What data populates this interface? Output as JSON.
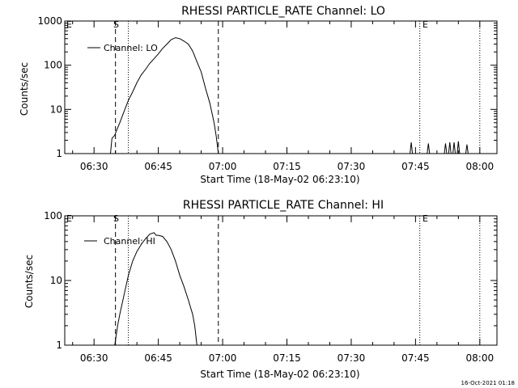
{
  "chart_data": [
    {
      "type": "line",
      "title": "RHESSI PARTICLE_RATE Channel: LO",
      "xlabel": "Start Time (18-May-02 06:23:10)",
      "ylabel": "Counts/sec",
      "yscale": "log",
      "ylim": [
        1,
        1000
      ],
      "xlim": [
        "06:23:10",
        "08:04:00"
      ],
      "x_ticks": [
        "06:30",
        "06:45",
        "07:00",
        "07:15",
        "07:30",
        "07:45",
        "08:00"
      ],
      "y_ticks": [
        "1",
        "10",
        "100",
        "1000"
      ],
      "legend": "Channel: LO",
      "legend_position": "top-left",
      "markers": {
        "E": "E",
        "S": "S",
        "E2": "E"
      },
      "grid": false,
      "series": [
        {
          "name": "Channel: LO",
          "points": [
            [
              "06:33:50",
              1.0
            ],
            [
              "06:34:10",
              2.2
            ],
            [
              "06:34:50",
              2.6
            ],
            [
              "06:35:10",
              3.2
            ],
            [
              "06:36:00",
              5.0
            ],
            [
              "06:37:00",
              9.0
            ],
            [
              "06:38:00",
              16
            ],
            [
              "06:39:00",
              25
            ],
            [
              "06:40:00",
              40
            ],
            [
              "06:41:00",
              60
            ],
            [
              "06:42:00",
              80
            ],
            [
              "06:43:00",
              110
            ],
            [
              "06:44:00",
              140
            ],
            [
              "06:45:00",
              180
            ],
            [
              "06:46:00",
              240
            ],
            [
              "06:47:00",
              300
            ],
            [
              "06:48:00",
              380
            ],
            [
              "06:49:00",
              420
            ],
            [
              "06:50:00",
              400
            ],
            [
              "06:51:00",
              350
            ],
            [
              "06:52:00",
              300
            ],
            [
              "06:53:00",
              210
            ],
            [
              "06:54:00",
              120
            ],
            [
              "06:55:00",
              70
            ],
            [
              "06:56:00",
              30
            ],
            [
              "06:57:00",
              14
            ],
            [
              "06:58:00",
              5
            ],
            [
              "06:58:30",
              2.5
            ],
            [
              "06:59:00",
              1.0
            ]
          ],
          "spikes": [
            [
              "07:44:00",
              1.8
            ],
            [
              "07:48:00",
              1.7
            ],
            [
              "07:52:00",
              1.7
            ],
            [
              "07:53:00",
              1.8
            ],
            [
              "07:54:00",
              1.8
            ],
            [
              "07:55:00",
              1.9
            ],
            [
              "07:57:00",
              1.6
            ]
          ]
        }
      ],
      "vlines": [
        {
          "time": "06:35:00",
          "style": "dashed"
        },
        {
          "time": "06:38:00",
          "style": "dotted"
        },
        {
          "time": "06:59:00",
          "style": "dashed"
        },
        {
          "time": "07:46:00",
          "style": "dotted"
        },
        {
          "time": "08:00:00",
          "style": "dotted"
        }
      ]
    },
    {
      "type": "line",
      "title": "RHESSI PARTICLE_RATE Channel: HI",
      "xlabel": "Start Time (18-May-02 06:23:10)",
      "ylabel": "Counts/sec",
      "yscale": "log",
      "ylim": [
        1,
        100
      ],
      "xlim": [
        "06:23:10",
        "08:04:00"
      ],
      "x_ticks": [
        "06:30",
        "06:45",
        "07:00",
        "07:15",
        "07:30",
        "07:45",
        "08:00"
      ],
      "y_ticks": [
        "1",
        "10",
        "100"
      ],
      "legend": "Channel: HI",
      "legend_position": "top-left",
      "markers": {
        "E": "E",
        "S": "S",
        "E2": "E"
      },
      "grid": false,
      "series": [
        {
          "name": "Channel: HI",
          "points": [
            [
              "06:34:50",
              1.0
            ],
            [
              "06:35:30",
              2.0
            ],
            [
              "06:36:00",
              3.0
            ],
            [
              "06:37:00",
              6.0
            ],
            [
              "06:38:00",
              12
            ],
            [
              "06:39:00",
              20
            ],
            [
              "06:40:00",
              28
            ],
            [
              "06:41:00",
              36
            ],
            [
              "06:42:00",
              44
            ],
            [
              "06:43:00",
              52
            ],
            [
              "06:44:00",
              55
            ],
            [
              "06:44:30",
              50
            ],
            [
              "06:45:00",
              50
            ],
            [
              "06:46:00",
              48
            ],
            [
              "06:47:00",
              40
            ],
            [
              "06:48:00",
              30
            ],
            [
              "06:49:00",
              20
            ],
            [
              "06:50:00",
              12
            ],
            [
              "06:51:00",
              8
            ],
            [
              "06:52:00",
              5
            ],
            [
              "06:53:00",
              3
            ],
            [
              "06:53:30",
              2
            ],
            [
              "06:54:00",
              1.0
            ]
          ],
          "spikes": []
        }
      ],
      "vlines": [
        {
          "time": "06:35:00",
          "style": "dashed"
        },
        {
          "time": "06:38:00",
          "style": "dotted"
        },
        {
          "time": "06:59:00",
          "style": "dashed"
        },
        {
          "time": "07:46:00",
          "style": "dotted"
        },
        {
          "time": "08:00:00",
          "style": "dotted"
        }
      ]
    }
  ],
  "footer": {
    "timestamp": "16-Oct-2021 01:18"
  }
}
